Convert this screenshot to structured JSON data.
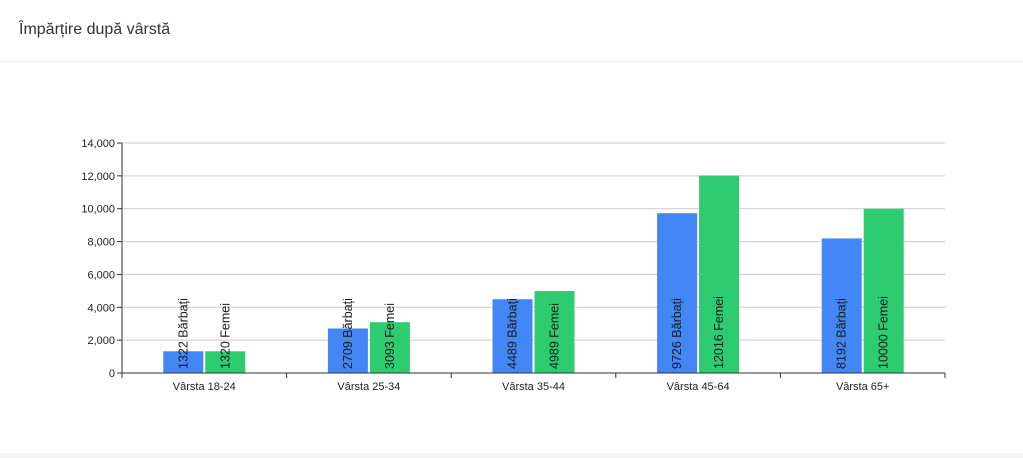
{
  "card": {
    "title": "Împărțire după vârstă"
  },
  "chart_data": {
    "type": "bar",
    "title": "Împărțire după vârstă",
    "xlabel": "",
    "ylabel": "",
    "categories": [
      "Vârsta 18-24",
      "Vârsta 25-34",
      "Vârsta 35-44",
      "Vârsta 45-64",
      "Vârsta 65+"
    ],
    "series": [
      {
        "values": [
          1322,
          2709,
          4489,
          9726,
          8192
        ],
        "labels": [
          "1322 Bărbați",
          "2709 Bărbați",
          "4489 Bărbați",
          "9726 Bărbați",
          "8192 Bărbați"
        ]
      },
      {
        "values": [
          1320,
          3093,
          4989,
          12016,
          10000
        ],
        "labels": [
          "1320 Femei",
          "3093 Femei",
          "4989 Femei",
          "12016 Femei",
          "10000 Femei"
        ]
      }
    ],
    "ylim": [
      0,
      14000
    ],
    "yticks": [
      "0",
      "2,000",
      "4,000",
      "6,000",
      "8,000",
      "10,000",
      "12,000",
      "14,000"
    ],
    "grid": true,
    "colors": {
      "barbati": "#4287f5",
      "femei": "#2ecc71",
      "grid": "#cccccc",
      "axis": "#333333"
    }
  }
}
